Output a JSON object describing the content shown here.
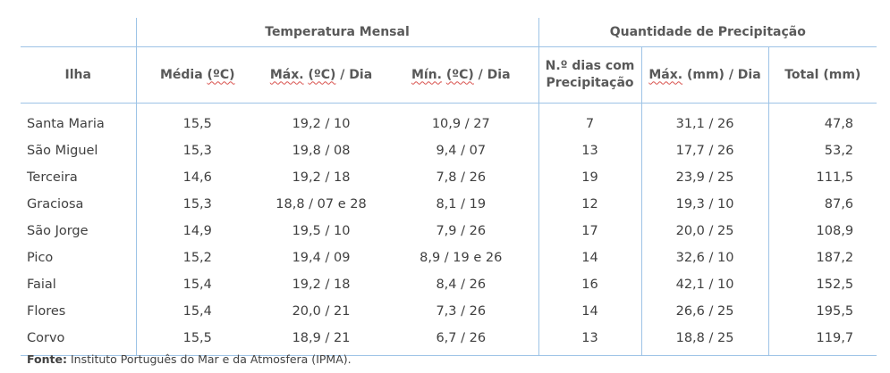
{
  "groups": {
    "temperature": "Temperatura Mensal",
    "precipitation": "Quantidade de Precipitação"
  },
  "headers": {
    "island": "Ilha",
    "mean_a": "Média ",
    "mean_b": "(ºC)",
    "max_a": "Máx.",
    "max_b": " ",
    "max_c": "(ºC)",
    "max_d": " / Dia",
    "min_a": "Mín.",
    "min_b": " ",
    "min_c": "(ºC)",
    "min_d": " / Dia",
    "days": "N.º dias com Precipitação",
    "pmax_a": "Máx.",
    "pmax_b": " (mm) / Dia",
    "total": "Total (mm)"
  },
  "rows": [
    {
      "ilha": "Santa Maria",
      "media": "15,5",
      "max": "19,2 / 10",
      "min": "10,9 / 27",
      "dias": "7",
      "pmax": "31,1 / 26",
      "total": "47,8"
    },
    {
      "ilha": "São Miguel",
      "media": "15,3",
      "max": "19,8 / 08",
      "min": "9,4 / 07",
      "dias": "13",
      "pmax": "17,7 / 26",
      "total": "53,2"
    },
    {
      "ilha": "Terceira",
      "media": "14,6",
      "max": "19,2 / 18",
      "min": "7,8 / 26",
      "dias": "19",
      "pmax": "23,9 / 25",
      "total": "111,5"
    },
    {
      "ilha": "Graciosa",
      "media": "15,3",
      "max": "18,8 / 07 e 28",
      "min": "8,1 / 19",
      "dias": "12",
      "pmax": "19,3 / 10",
      "total": "87,6"
    },
    {
      "ilha": "São Jorge",
      "media": "14,9",
      "max": "19,5 / 10",
      "min": "7,9 / 26",
      "dias": "17",
      "pmax": "20,0 / 25",
      "total": "108,9"
    },
    {
      "ilha": "Pico",
      "media": "15,2",
      "max": "19,4 / 09",
      "min": "8,9 / 19 e 26",
      "dias": "14",
      "pmax": "32,6 / 10",
      "total": "187,2"
    },
    {
      "ilha": "Faial",
      "media": "15,4",
      "max": "19,2 / 18",
      "min": "8,4 / 26",
      "dias": "16",
      "pmax": "42,1 / 10",
      "total": "152,5"
    },
    {
      "ilha": "Flores",
      "media": "15,4",
      "max": "20,0 / 21",
      "min": "7,3 / 26",
      "dias": "14",
      "pmax": "26,6 / 25",
      "total": "195,5"
    },
    {
      "ilha": "Corvo",
      "media": "15,5",
      "max": "18,9 / 21",
      "min": "6,7 / 26",
      "dias": "13",
      "pmax": "18,8 / 25",
      "total": "119,7"
    }
  ],
  "source": {
    "label": "Fonte:",
    "text": " Instituto Português do Mar e da Atmosfera (IPMA)."
  }
}
